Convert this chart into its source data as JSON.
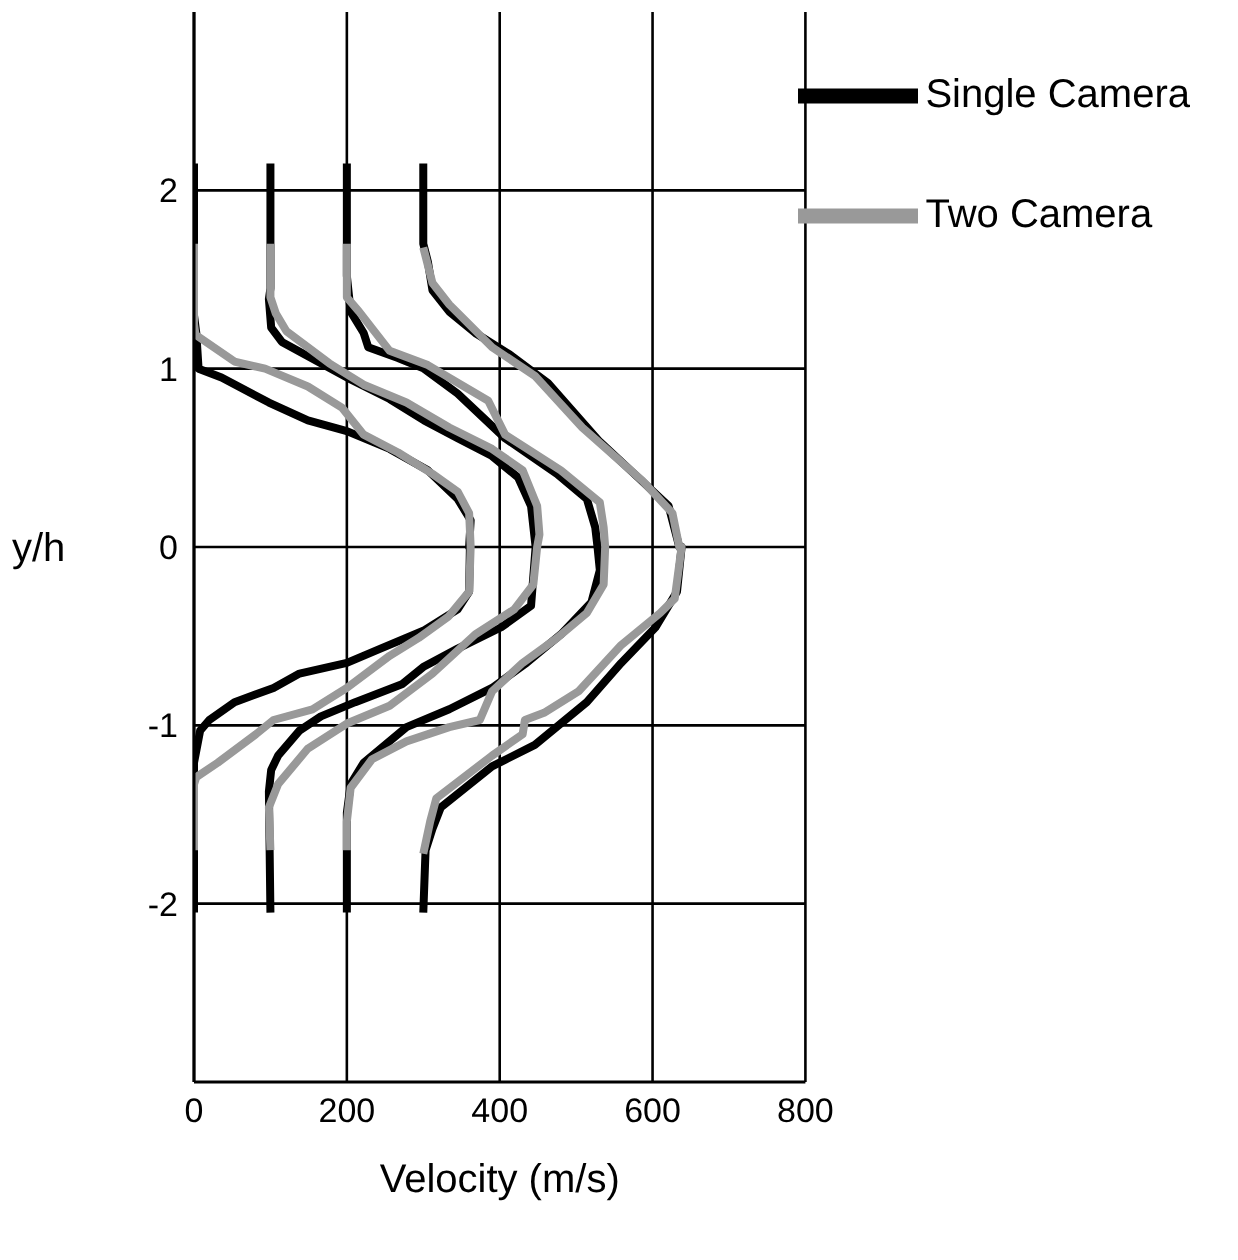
{
  "chart_data": {
    "type": "line",
    "xlabel": "Velocity (m/s)",
    "ylabel": "y/h",
    "xlim": [
      0,
      800
    ],
    "xticks": [
      0,
      200,
      400,
      600,
      800
    ],
    "ylim": [
      -3,
      3
    ],
    "yticks": [
      -2,
      -1,
      0,
      1,
      2
    ],
    "grid": true,
    "legend": "top right",
    "marker": "none",
    "line_style": "solid",
    "series": [
      {
        "name": "Single Camera",
        "color": "#000000",
        "x": [
          0,
          0,
          3,
          6,
          36,
          98,
          149,
          200,
          256,
          306,
          345,
          362,
          360,
          361,
          360,
          345,
          300,
          244,
          200,
          138,
          104,
          53,
          20,
          8,
          0,
          0
        ],
        "values": [
          2.15,
          1.3,
          1.2,
          1.0,
          0.95,
          0.81,
          0.71,
          0.65,
          0.55,
          0.43,
          0.27,
          0.15,
          0,
          0,
          -0.25,
          -0.35,
          -0.47,
          -0.57,
          -0.65,
          -0.71,
          -0.79,
          -0.87,
          -0.97,
          -1.03,
          -1.21,
          -2.05
        ]
      },
      {
        "color": "#000000",
        "x": [
          100,
          100,
          98,
          101,
          115,
          166,
          205,
          256,
          301,
          345,
          390,
          424,
          441,
          447,
          441,
          402,
          345,
          301,
          272,
          211,
          166,
          138,
          110,
          101,
          98,
          100
        ],
        "values": [
          2.15,
          1.45,
          1.39,
          1.23,
          1.15,
          1.03,
          0.94,
          0.83,
          0.71,
          0.61,
          0.51,
          0.39,
          0.23,
          0,
          -0.33,
          -0.45,
          -0.57,
          -0.67,
          -0.77,
          -0.87,
          -0.95,
          -1.03,
          -1.17,
          -1.25,
          -1.37,
          -2.05
        ]
      },
      {
        "color": "#000000",
        "x": [
          200,
          200,
          205,
          222,
          228,
          267,
          301,
          345,
          407,
          475,
          514,
          525,
          528,
          531,
          520,
          480,
          435,
          390,
          334,
          278,
          222,
          205,
          200,
          200
        ],
        "values": [
          2.15,
          1.52,
          1.32,
          1.2,
          1.12,
          1.06,
          1.0,
          0.86,
          0.61,
          0.41,
          0.27,
          0.11,
          0,
          -0.13,
          -0.31,
          -0.49,
          -0.65,
          -0.79,
          -0.91,
          -1.01,
          -1.21,
          -1.33,
          -1.49,
          -2.05
        ]
      },
      {
        "color": "#000000",
        "x": [
          300,
          300,
          306,
          312,
          334,
          368,
          413,
          463,
          531,
          581,
          621,
          635,
          638,
          632,
          604,
          559,
          514,
          446,
          390,
          323,
          312,
          303,
          300
        ],
        "values": [
          2.15,
          1.7,
          1.6,
          1.44,
          1.32,
          1.2,
          1.08,
          0.92,
          0.59,
          0.39,
          0.23,
          0,
          0,
          -0.25,
          -0.45,
          -0.65,
          -0.87,
          -1.11,
          -1.23,
          -1.46,
          -1.58,
          -1.7,
          -2.05
        ]
      },
      {
        "name": "Two Camera",
        "color": "#999999",
        "x": [
          0,
          0,
          2,
          53,
          93,
          149,
          194,
          222,
          267,
          312,
          345,
          360,
          362,
          360,
          333,
          294,
          256,
          200,
          155,
          104,
          81,
          31,
          3,
          0,
          0
        ],
        "values": [
          1.7,
          1.25,
          1.19,
          1.04,
          1.0,
          0.9,
          0.78,
          0.63,
          0.53,
          0.41,
          0.31,
          0.19,
          0,
          -0.25,
          -0.39,
          -0.51,
          -0.61,
          -0.79,
          -0.91,
          -0.97,
          -1.05,
          -1.21,
          -1.29,
          -1.33,
          -1.7
        ]
      },
      {
        "color": "#999999",
        "x": [
          100,
          100,
          107,
          121,
          177,
          222,
          278,
          334,
          390,
          430,
          449,
          452,
          449,
          444,
          419,
          368,
          312,
          256,
          200,
          149,
          110,
          98,
          100
        ],
        "values": [
          1.7,
          1.4,
          1.31,
          1.21,
          1.03,
          0.91,
          0.81,
          0.67,
          0.55,
          0.43,
          0.23,
          0.07,
          0,
          -0.21,
          -0.35,
          -0.49,
          -0.71,
          -0.89,
          -0.99,
          -1.13,
          -1.33,
          -1.46,
          -1.7
        ]
      },
      {
        "color": "#999999",
        "x": [
          200,
          200,
          216,
          256,
          306,
          385,
          407,
          480,
          531,
          536,
          538,
          536,
          514,
          475,
          430,
          390,
          374,
          334,
          278,
          233,
          205,
          200,
          200
        ],
        "values": [
          1.7,
          1.4,
          1.32,
          1.1,
          1.02,
          0.82,
          0.63,
          0.43,
          0.25,
          0.11,
          0,
          -0.21,
          -0.37,
          -0.51,
          -0.65,
          -0.81,
          -0.97,
          -1.01,
          -1.09,
          -1.19,
          -1.35,
          -1.54,
          -1.7
        ]
      },
      {
        "color": "#999999",
        "x": [
          300,
          312,
          334,
          390,
          446,
          508,
          587,
          626,
          635,
          638,
          629,
          610,
          559,
          503,
          458,
          433,
          430,
          390,
          317,
          309,
          300
        ],
        "values": [
          1.68,
          1.48,
          1.36,
          1.12,
          0.96,
          0.67,
          0.37,
          0.19,
          0,
          0,
          -0.29,
          -0.37,
          -0.55,
          -0.81,
          -0.93,
          -0.97,
          -1.05,
          -1.17,
          -1.41,
          -1.54,
          -1.72
        ]
      }
    ]
  }
}
